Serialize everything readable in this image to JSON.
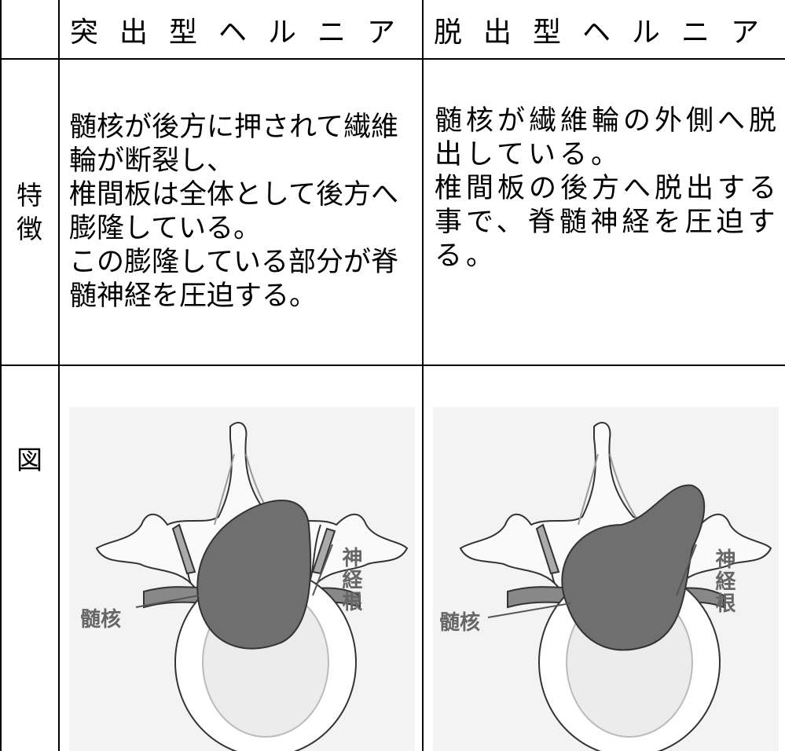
{
  "table": {
    "columns": [
      "突出型ヘルニア",
      "脱出型ヘルニア"
    ],
    "rows": [
      {
        "label": "特徴",
        "cells": [
          [
            "髄核が後方に押されて繊維輪が断裂し、",
            "椎間板は全体として後方へ膨隆している。",
            "この膨隆している部分が脊髄神経を圧迫する。"
          ],
          [
            "髄核が繊維輪の外側へ脱出している。",
            "椎間板の後方へ脱出する事で、脊髄神経を圧迫する。"
          ]
        ]
      },
      {
        "label": "図",
        "figures": [
          {
            "nucleus": "髄核",
            "nerve_root": "神経根"
          },
          {
            "nucleus": "髄核",
            "nerve_root": "神経根"
          }
        ]
      }
    ]
  }
}
